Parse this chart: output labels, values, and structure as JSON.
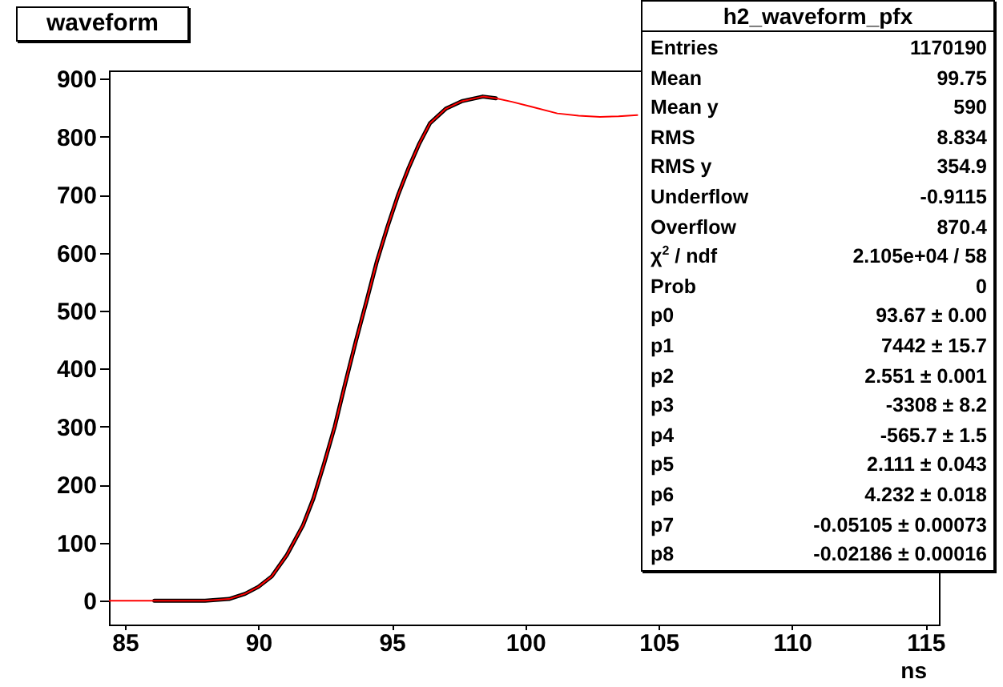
{
  "chart_data": {
    "type": "line",
    "title": "waveform",
    "xlabel": "ns",
    "annotations": [
      "h2_waveform_pfx",
      "Entries",
      "1170190",
      "Mean",
      "99.75",
      "Mean y",
      "590",
      "RMS",
      "8.834",
      "RMS y",
      "354.9",
      "Underflow",
      "-0.9115",
      "Overflow",
      "870.4",
      "χ$^{2}$ / ndf",
      "2.105e+04 / 58",
      "Prob",
      "0",
      "p0",
      "93.67 ± 0.00",
      "p1",
      "7442 ± 15.7",
      "p2",
      "2.551 ± 0.001",
      "p3",
      "-3308 ± 8.2",
      "p4",
      "-565.7 ± 1.5",
      "p5",
      "2.111 ± 0.043",
      "p6",
      "4.232 ± 0.018",
      "p7",
      "-0.05105 ± 0.00073",
      "p8",
      "-0.02186 ± 0.00016"
    ],
    "series": [
      {
        "color": "#000000",
        "x": [
          86.1,
          87,
          88,
          88.9,
          89.5,
          90.0,
          90.5,
          91.07,
          91.67,
          92.06,
          92.46,
          92.86,
          93.25,
          93.65,
          94.05,
          94.44,
          94.84,
          95.24,
          95.63,
          96.03,
          96.43,
          97.02,
          97.62,
          98.41,
          98.9
        ],
        "values": [
          0,
          0,
          0,
          3,
          12,
          24,
          42,
          79,
          130,
          176,
          236,
          300,
          374,
          447,
          516,
          585,
          645,
          700,
          746,
          788,
          823,
          848,
          861,
          869,
          866
        ]
      },
      {
        "color": "#ff0000",
        "x": [
          84.4,
          85,
          86.1,
          87,
          88,
          88.9,
          89.5,
          90.0,
          90.5,
          91.07,
          91.67,
          92.06,
          92.46,
          92.86,
          93.25,
          93.65,
          94.05,
          94.44,
          94.84,
          95.24,
          95.63,
          96.03,
          96.43,
          97.02,
          97.62,
          98.41,
          98.9,
          99.5,
          100.2,
          101.2,
          102.0,
          102.8,
          103.5,
          104.2
        ],
        "values": [
          0,
          0,
          0,
          0,
          0,
          3,
          12,
          24,
          42,
          79,
          130,
          176,
          236,
          300,
          374,
          447,
          516,
          585,
          645,
          700,
          746,
          788,
          823,
          848,
          861,
          869,
          866,
          860,
          852,
          840,
          836,
          834,
          835,
          837
        ]
      }
    ],
    "xlim": [
      84.4,
      115.5
    ],
    "ylim": [
      -41,
      914
    ],
    "xticks": [
      85,
      90,
      95,
      100,
      105,
      110,
      115
    ],
    "yticks": [
      0,
      100,
      200,
      300,
      400,
      500,
      600,
      700,
      800,
      900
    ],
    "grid": false,
    "marker": "none",
    "line_style": "solid"
  }
}
